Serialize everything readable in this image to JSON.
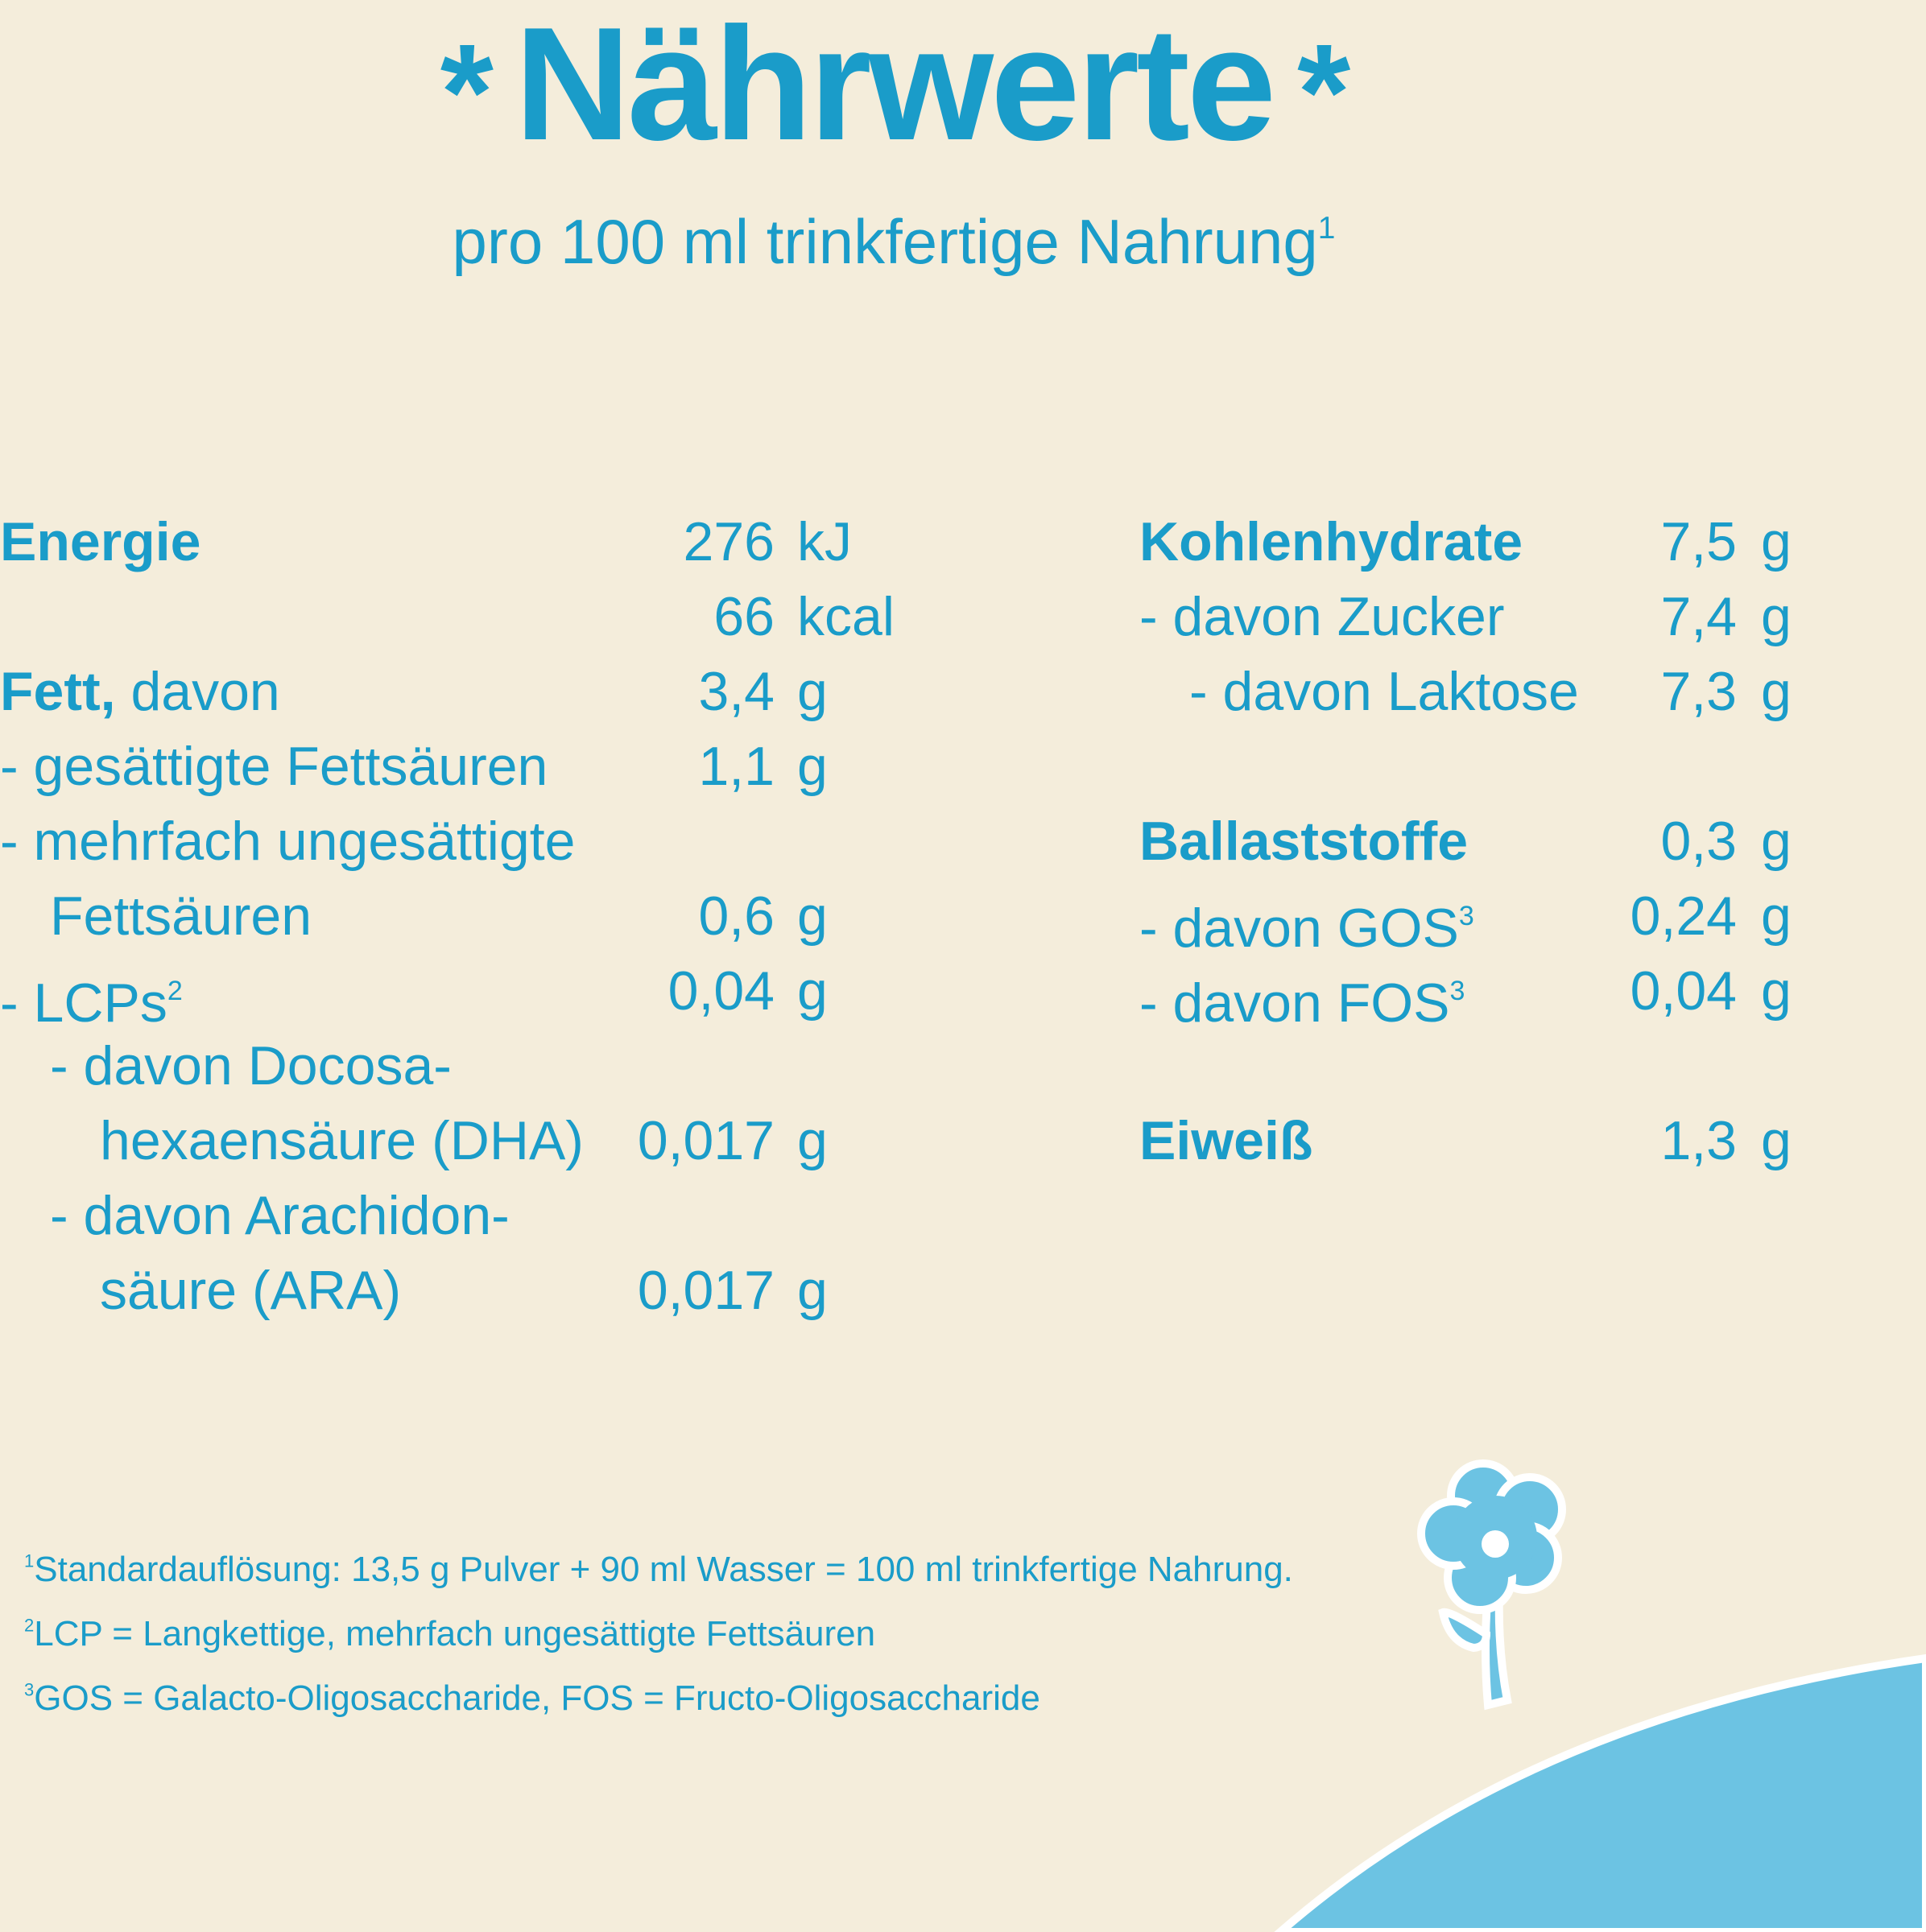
{
  "title": "Nährwerte",
  "title_decoration": "*",
  "subtitle": "pro 100 ml trinkfertige Nahrung",
  "subtitle_sup": "1",
  "left_rows": [
    {
      "label": "Energie",
      "bold": true,
      "value": "276",
      "unit": "kJ",
      "y": 0
    },
    {
      "label": "",
      "value": "66",
      "unit": "kcal"
    },
    {
      "label": "Fett,",
      "suffix": " davon",
      "bold": true,
      "value": "3,4",
      "unit": "g"
    },
    {
      "label": "- gesättigte Fettsäuren",
      "value": "1,1",
      "unit": "g"
    },
    {
      "label": "- mehrfach ungesättigte",
      "value": "",
      "unit": ""
    },
    {
      "label": "Fettsäuren",
      "indent": 1,
      "value": "0,6",
      "unit": "g"
    },
    {
      "label": "- LCPs",
      "sup": "2",
      "value": "0,04",
      "unit": "g"
    },
    {
      "label": "- davon Docosa-",
      "indent": 1,
      "value": "",
      "unit": ""
    },
    {
      "label": "hexaensäure (DHA)",
      "indent": 2,
      "value": "0,017",
      "unit": "g"
    },
    {
      "label": "- davon Arachidon-",
      "indent": 1,
      "value": "",
      "unit": ""
    },
    {
      "label": "säure (ARA)",
      "indent": 2,
      "value": "0,017",
      "unit": "g"
    }
  ],
  "right_rows": [
    {
      "label": "Kohlenhydrate",
      "bold": true,
      "value": "7,5",
      "unit": "g",
      "line": 0
    },
    {
      "label": "- davon Zucker",
      "value": "7,4",
      "unit": "g",
      "line": 1
    },
    {
      "label": "- davon Laktose",
      "indent": 1,
      "value": "7,3",
      "unit": "g",
      "line": 2
    },
    {
      "label": "Ballaststoffe",
      "bold": true,
      "value": "0,3",
      "unit": "g",
      "line": 4
    },
    {
      "label": "- davon GOS",
      "sup": "3",
      "value": "0,24",
      "unit": "g",
      "line": 5
    },
    {
      "label": "- davon FOS",
      "sup": "3",
      "value": "0,04",
      "unit": "g",
      "line": 6
    },
    {
      "label": "Eiweiß",
      "bold": true,
      "value": "1,3",
      "unit": "g",
      "line": 8
    }
  ],
  "footnotes": [
    {
      "mark": "1",
      "text": "Standardauflösung: 13,5 g Pulver + 90 ml Wasser = 100 ml trinkfertige Nahrung."
    },
    {
      "mark": "2",
      "text": "LCP = Langkettige, mehrfach ungesättigte Fettsäuren"
    },
    {
      "mark": "3",
      "text": "GOS = Galacto-Oligosaccharide, FOS = Fructo-Oligosaccharide"
    }
  ],
  "colors": {
    "text": "#1a9cc9",
    "background": "#f4eddb",
    "illustration": "#6cc3e3"
  },
  "illustration": "flower-on-hill"
}
